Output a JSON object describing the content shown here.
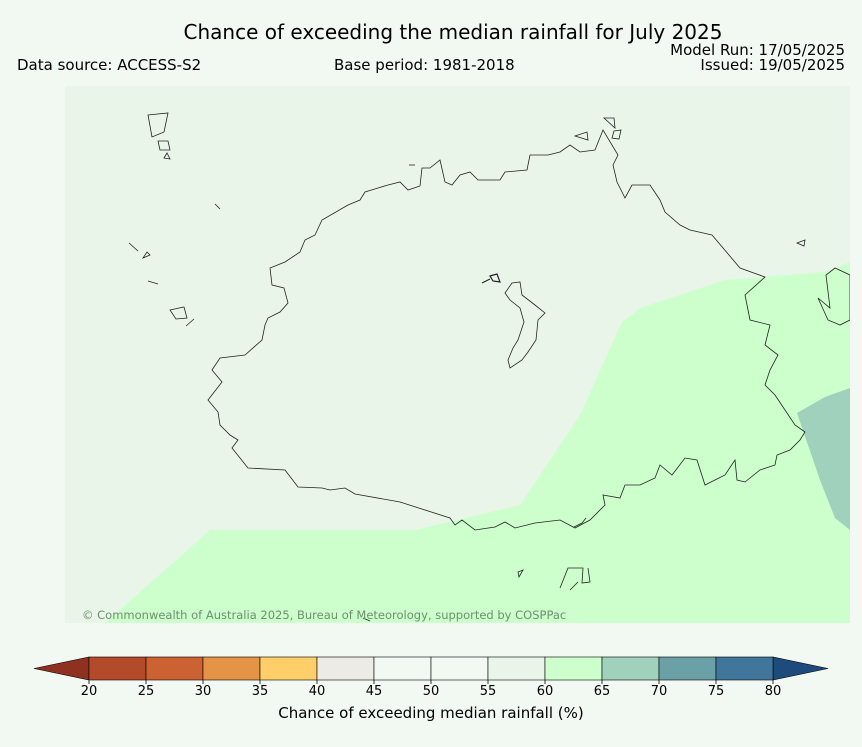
{
  "header": {
    "title": "Chance of exceeding the median rainfall for July 2025",
    "data_source": "Data source: ACCESS-S2",
    "base_period": "Base period: 1981-2018",
    "model_run": "Model Run: 17/05/2025",
    "issued": "Issued: 19/05/2025"
  },
  "map": {
    "copyright": "© Commonwealth of Australia 2025, Bureau of Meteorology, supported by COSPPac",
    "background_category": "50-55",
    "regions": [
      {
        "name": "south-east band",
        "category": "60-65"
      },
      {
        "name": "east edge",
        "category": "65-70"
      }
    ]
  },
  "colorbar": {
    "label": "Chance of exceeding median rainfall (%)",
    "ticks": [
      "20",
      "25",
      "30",
      "35",
      "40",
      "45",
      "50",
      "55",
      "60",
      "65",
      "70",
      "75",
      "80"
    ],
    "colors": [
      "#b34a2a",
      "#cc6232",
      "#e49347",
      "#fece69",
      "#ecebe6",
      "#f2f8f2",
      "#f2f8f2",
      "#e8f5e8",
      "#ccffcc",
      "#9fd1bc",
      "#6ba0a6",
      "#40769b"
    ],
    "under_color": "#8e3121",
    "over_color": "#1d4b7c"
  }
}
